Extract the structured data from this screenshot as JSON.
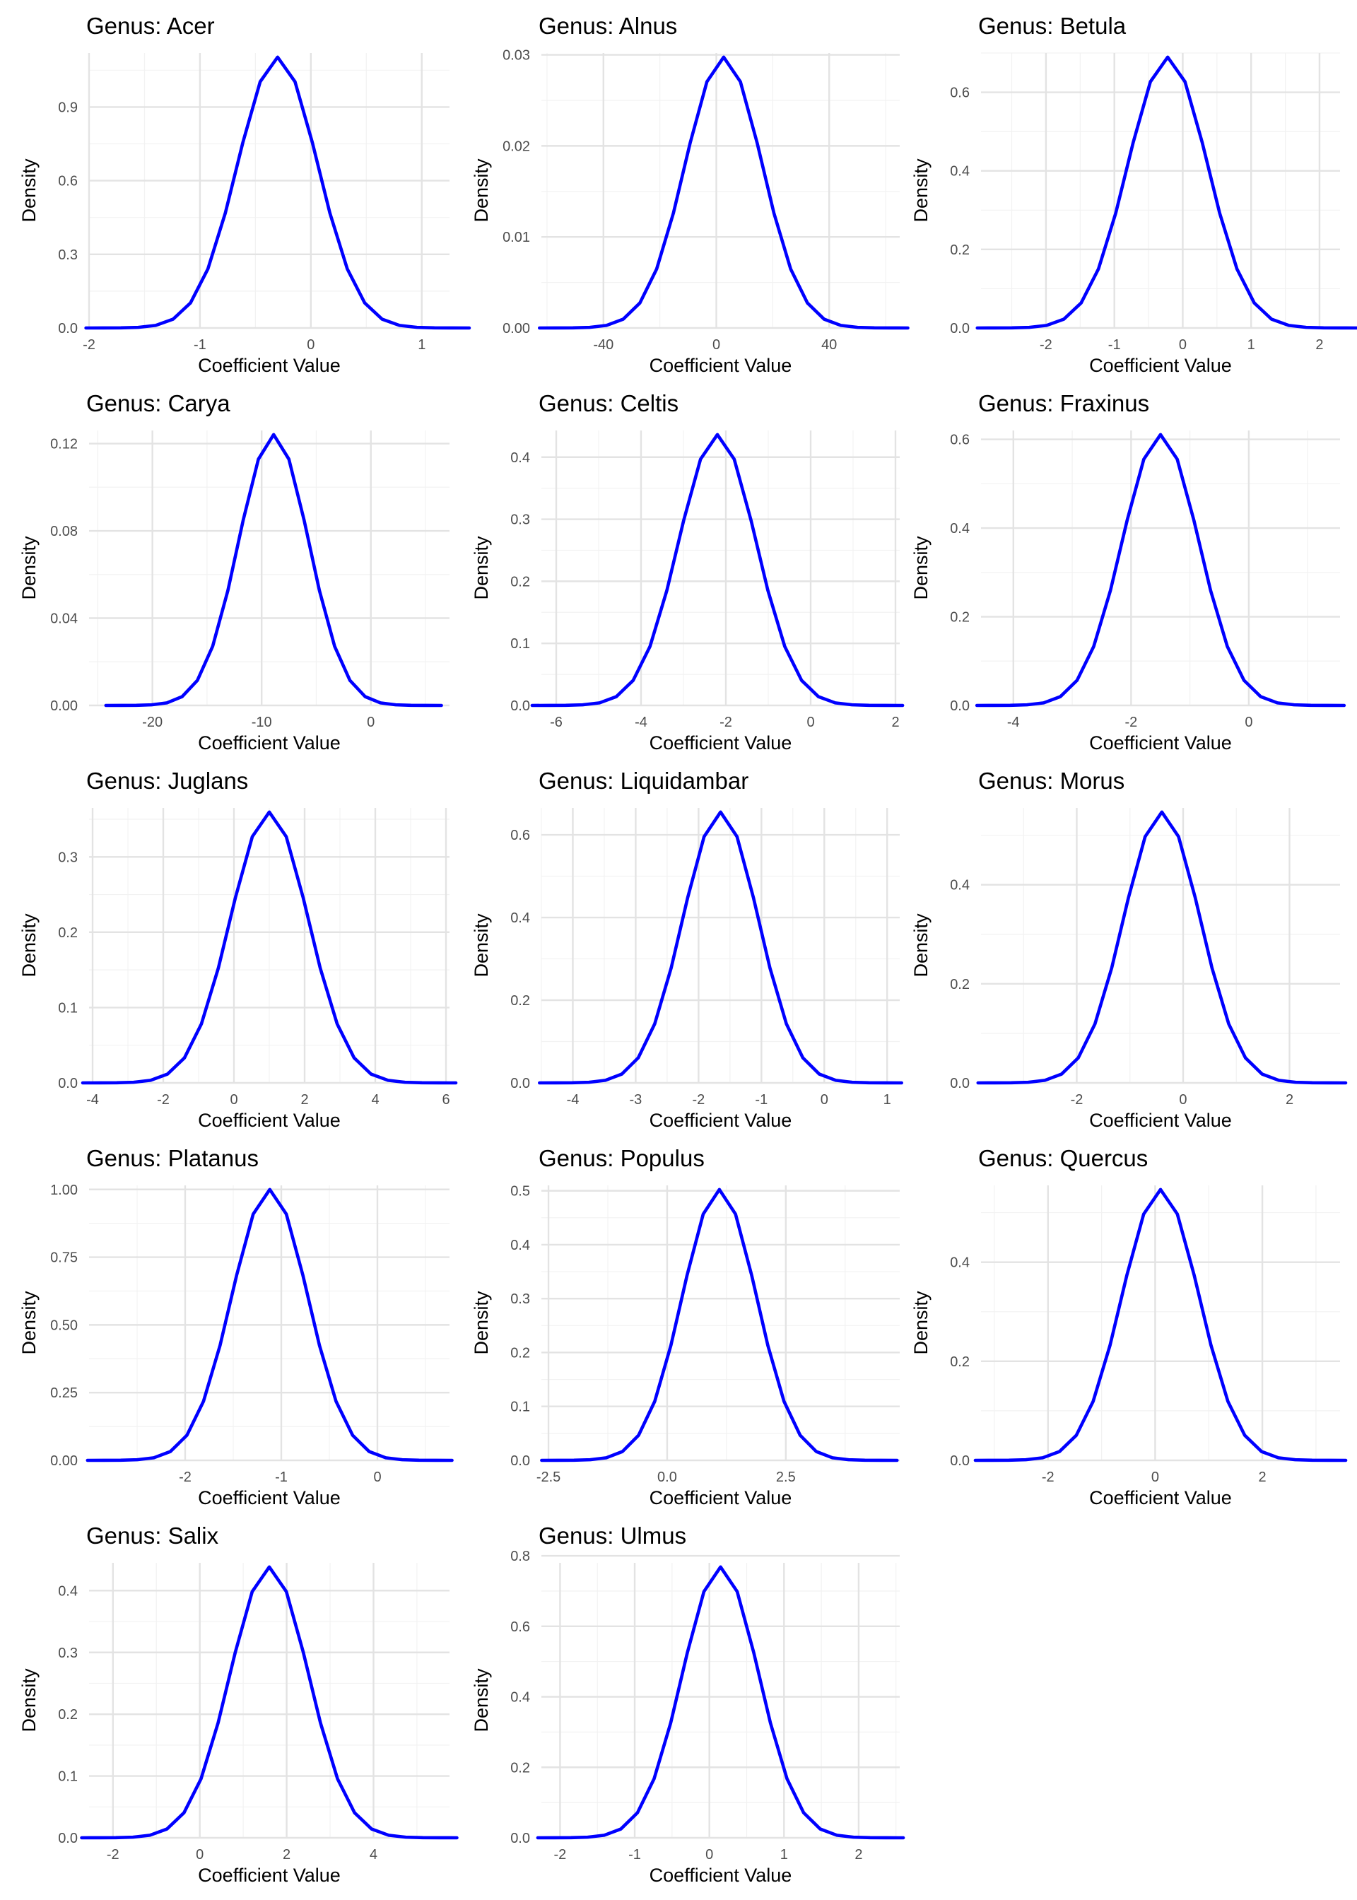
{
  "chart_data": {
    "type": "line",
    "shared": {
      "xlabel": "Coefficient Value",
      "ylabel": "Density",
      "grid": true,
      "line_color": "#0000ff"
    },
    "panels": [
      {
        "title": "Genus: Acer",
        "mean": -0.3,
        "sd": 0.36,
        "xlim": [
          -2.0,
          1.25
        ],
        "ylim": [
          0,
          1.12
        ],
        "xticks": [
          -2,
          -1,
          0,
          1
        ],
        "xtick_labels": [
          "-2",
          "-1",
          "0",
          "1"
        ],
        "yticks": [
          0.0,
          0.3,
          0.6,
          0.9
        ],
        "ytick_labels": [
          "0.0",
          "0.3",
          "0.6",
          "0.9"
        ]
      },
      {
        "title": "Genus: Alnus",
        "mean": 2.6,
        "sd": 13.6,
        "xlim": [
          -62,
          65
        ],
        "ylim": [
          0,
          0.0302
        ],
        "xticks": [
          -40,
          0,
          40
        ],
        "xtick_labels": [
          "-40",
          "0",
          "40"
        ],
        "yticks": [
          0.0,
          0.01,
          0.02,
          0.03
        ],
        "ytick_labels": [
          "0.00",
          "0.01",
          "0.02",
          "0.03"
        ]
      },
      {
        "title": "Genus: Betula",
        "mean": -0.22,
        "sd": 0.58,
        "xlim": [
          -2.95,
          2.3
        ],
        "ylim": [
          0,
          0.7
        ],
        "xticks": [
          -2,
          -1,
          0,
          1,
          2
        ],
        "xtick_labels": [
          "-2",
          "-1",
          "0",
          "1",
          "2"
        ],
        "yticks": [
          0.0,
          0.2,
          0.4,
          0.6
        ],
        "ytick_labels": [
          "0.0",
          "0.2",
          "0.4",
          "0.6"
        ]
      },
      {
        "title": "Genus: Carya",
        "mean": -8.9,
        "sd": 3.2,
        "xlim": [
          -25.8,
          7.2
        ],
        "ylim": [
          0,
          0.126
        ],
        "xticks": [
          -20,
          -10,
          0
        ],
        "xtick_labels": [
          "-20",
          "-10",
          "0"
        ],
        "yticks": [
          0.0,
          0.04,
          0.08,
          0.12
        ],
        "ytick_labels": [
          "0.00",
          "0.04",
          "0.08",
          "0.12"
        ]
      },
      {
        "title": "Genus: Celtis",
        "mean": -2.2,
        "sd": 0.91,
        "xlim": [
          -6.35,
          2.1
        ],
        "ylim": [
          0,
          0.443
        ],
        "xticks": [
          -6,
          -4,
          -2,
          0,
          2
        ],
        "xtick_labels": [
          "-6",
          "-4",
          "-2",
          "0",
          "2"
        ],
        "yticks": [
          0.0,
          0.1,
          0.2,
          0.3,
          0.4
        ],
        "ytick_labels": [
          "0.0",
          "0.1",
          "0.2",
          "0.3",
          "0.4"
        ]
      },
      {
        "title": "Genus: Fraxinus",
        "mean": -1.5,
        "sd": 0.65,
        "xlim": [
          -4.55,
          1.55
        ],
        "ylim": [
          0,
          0.62
        ],
        "xticks": [
          -4,
          -2,
          0
        ],
        "xtick_labels": [
          "-4",
          "-2",
          "0"
        ],
        "yticks": [
          0.0,
          0.2,
          0.4,
          0.6
        ],
        "ytick_labels": [
          "0.0",
          "0.2",
          "0.4",
          "0.6"
        ]
      },
      {
        "title": "Genus: Juglans",
        "mean": 1.0,
        "sd": 1.1,
        "xlim": [
          -4.1,
          6.1
        ],
        "ylim": [
          0,
          0.365
        ],
        "xticks": [
          -4,
          -2,
          0,
          2,
          4,
          6
        ],
        "xtick_labels": [
          "-4",
          "-2",
          "0",
          "2",
          "4",
          "6"
        ],
        "yticks": [
          0.0,
          0.1,
          0.2,
          0.3
        ],
        "ytick_labels": [
          "0.0",
          "0.1",
          "0.2",
          "0.3"
        ]
      },
      {
        "title": "Genus: Liquidambar",
        "mean": -1.65,
        "sd": 0.6,
        "xlim": [
          -4.5,
          1.2
        ],
        "ylim": [
          0,
          0.665
        ],
        "xticks": [
          -4,
          -3,
          -2,
          -1,
          0,
          1
        ],
        "xtick_labels": [
          "-4",
          "-3",
          "-2",
          "-1",
          "0",
          "1"
        ],
        "yticks": [
          0.0,
          0.2,
          0.4,
          0.6
        ],
        "ytick_labels": [
          "0.0",
          "0.2",
          "0.4",
          "0.6"
        ]
      },
      {
        "title": "Genus: Morus",
        "mean": -0.4,
        "sd": 0.72,
        "xlim": [
          -3.8,
          2.95
        ],
        "ylim": [
          0,
          0.555
        ],
        "xticks": [
          -2,
          0,
          2
        ],
        "xtick_labels": [
          "-2",
          "0",
          "2"
        ],
        "yticks": [
          0.0,
          0.2,
          0.4
        ],
        "ytick_labels": [
          "0.0",
          "0.2",
          "0.4"
        ]
      },
      {
        "title": "Genus: Platanus",
        "mean": -1.12,
        "sd": 0.395,
        "xlim": [
          -3.0,
          0.75
        ],
        "ylim": [
          0,
          1.015
        ],
        "xticks": [
          -2,
          -1,
          0
        ],
        "xtick_labels": [
          "-2",
          "-1",
          "0"
        ],
        "yticks": [
          0.0,
          0.25,
          0.5,
          0.75,
          1.0
        ],
        "ytick_labels": [
          "0.00",
          "0.25",
          "0.50",
          "0.75",
          "1.00"
        ]
      },
      {
        "title": "Genus: Populus",
        "mean": 1.1,
        "sd": 0.78,
        "xlim": [
          -2.65,
          4.9
        ],
        "ylim": [
          0,
          0.51
        ],
        "xticks": [
          -2.5,
          0.0,
          2.5
        ],
        "xtick_labels": [
          "-2.5",
          "0.0",
          "2.5"
        ],
        "yticks": [
          0.0,
          0.1,
          0.2,
          0.3,
          0.4,
          0.5
        ],
        "ytick_labels": [
          "0.0",
          "0.1",
          "0.2",
          "0.3",
          "0.4",
          "0.5"
        ]
      },
      {
        "title": "Genus: Quercus",
        "mean": 0.1,
        "sd": 0.72,
        "xlim": [
          -3.25,
          3.45
        ],
        "ylim": [
          0,
          0.555
        ],
        "xticks": [
          -2,
          0,
          2
        ],
        "xtick_labels": [
          "-2",
          "0",
          "2"
        ],
        "yticks": [
          0.0,
          0.2,
          0.4
        ],
        "ytick_labels": [
          "0.0",
          "0.2",
          "0.4"
        ]
      },
      {
        "title": "Genus: Salix",
        "mean": 1.6,
        "sd": 0.9,
        "xlim": [
          -2.55,
          5.75
        ],
        "ylim": [
          0,
          0.445
        ],
        "xticks": [
          -2,
          0,
          2,
          4
        ],
        "xtick_labels": [
          "-2",
          "0",
          "2",
          "4"
        ],
        "yticks": [
          0.0,
          0.1,
          0.2,
          0.3,
          0.4
        ],
        "ytick_labels": [
          "0.0",
          "0.1",
          "0.2",
          "0.3",
          "0.4"
        ]
      },
      {
        "title": "Genus: Ulmus",
        "mean": 0.15,
        "sd": 0.51,
        "xlim": [
          -2.25,
          2.55
        ],
        "ylim": [
          0,
          0.78
        ],
        "xticks": [
          -2,
          -1,
          0,
          1,
          2
        ],
        "xtick_labels": [
          "-2",
          "-1",
          "0",
          "1",
          "2"
        ],
        "yticks": [
          0.0,
          0.2,
          0.4,
          0.6,
          0.8
        ],
        "ytick_labels": [
          "0.0",
          "0.2",
          "0.4",
          "0.6",
          "0.8"
        ]
      }
    ]
  }
}
